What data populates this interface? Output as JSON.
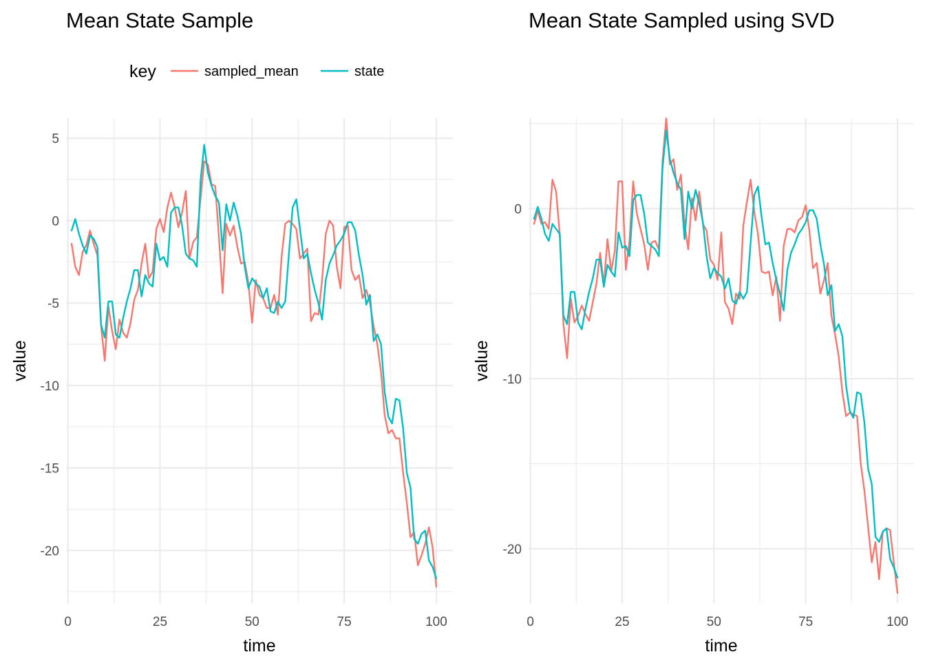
{
  "legend": {
    "title": "key",
    "items": [
      {
        "label": "sampled_mean",
        "color": "#F8766D"
      },
      {
        "label": "state",
        "color": "#00BFC4"
      }
    ]
  },
  "chart_data": [
    {
      "type": "line",
      "title": "Mean State Sample",
      "xlabel": "time",
      "ylabel": "value",
      "xlim": [
        -0.5,
        104.5
      ],
      "ylim": [
        -23.2,
        6.2
      ],
      "x_ticks": [
        0,
        25,
        50,
        75,
        100
      ],
      "x_tick_labels": [
        "0",
        "25",
        "50",
        "75",
        "100"
      ],
      "y_ticks": [
        5,
        0,
        -5,
        -10,
        -15,
        -20
      ],
      "y_tick_labels": [
        "5",
        "0",
        "-5",
        "-10",
        "-15",
        "-20"
      ],
      "grid": true,
      "legend_position": "top",
      "series": [
        {
          "name": "sampled_mean",
          "color": "#F8766D",
          "x": [
            1,
            2,
            3,
            4,
            5,
            6,
            7,
            8,
            9,
            10,
            11,
            12,
            13,
            14,
            15,
            16,
            17,
            18,
            19,
            20,
            21,
            22,
            23,
            24,
            25,
            26,
            27,
            28,
            29,
            30,
            31,
            32,
            33,
            34,
            35,
            36,
            37,
            38,
            39,
            40,
            41,
            42,
            43,
            44,
            45,
            46,
            47,
            48,
            49,
            50,
            51,
            52,
            53,
            54,
            55,
            56,
            57,
            58,
            59,
            60,
            61,
            62,
            63,
            64,
            65,
            66,
            67,
            68,
            69,
            70,
            71,
            72,
            73,
            74,
            75,
            76,
            77,
            78,
            79,
            80,
            81,
            82,
            83,
            84,
            85,
            86,
            87,
            88,
            89,
            90,
            91,
            92,
            93,
            94,
            95,
            96,
            97,
            98,
            99,
            100
          ],
          "values": [
            -1.4,
            -2.8,
            -3.3,
            -1.9,
            -1.5,
            -0.6,
            -1.4,
            -2.1,
            -6.4,
            -8.5,
            -5.2,
            -6.7,
            -7.8,
            -6.0,
            -6.8,
            -7.1,
            -6.2,
            -4.8,
            -4.2,
            -2.6,
            -1.4,
            -3.5,
            -3.1,
            -0.5,
            0.1,
            -0.7,
            0.8,
            1.7,
            0.8,
            -0.4,
            0.5,
            1.8,
            -2.3,
            -1.3,
            -1.0,
            1.3,
            3.6,
            3.4,
            2.2,
            2.1,
            -1.0,
            -4.4,
            -0.2,
            -0.9,
            -0.3,
            -1.6,
            -2.6,
            -2.5,
            -3.8,
            -6.2,
            -3.6,
            -4.5,
            -4.7,
            -5.3,
            -5.3,
            -4.5,
            -5.7,
            -2.2,
            -0.2,
            0.0,
            -0.2,
            -0.5,
            -2.3,
            -2.0,
            -1.7,
            -6.1,
            -5.6,
            -5.7,
            -3.6,
            -0.8,
            0.0,
            -0.3,
            -2.8,
            -4.1,
            -0.4,
            -0.3,
            -3.0,
            -3.6,
            -3.3,
            -4.7,
            -4.2,
            -5.0,
            -6.4,
            -7.5,
            -9.2,
            -11.8,
            -12.9,
            -12.7,
            -13.2,
            -13.2,
            -15.3,
            -17.1,
            -19.2,
            -18.9,
            -20.9,
            -20.3,
            -19.6,
            -18.6,
            -19.8,
            -22.2
          ]
        },
        {
          "name": "state",
          "color": "#00BFC4",
          "x": [
            1,
            2,
            3,
            4,
            5,
            6,
            7,
            8,
            9,
            10,
            11,
            12,
            13,
            14,
            15,
            16,
            17,
            18,
            19,
            20,
            21,
            22,
            23,
            24,
            25,
            26,
            27,
            28,
            29,
            30,
            31,
            32,
            33,
            34,
            35,
            36,
            37,
            38,
            39,
            40,
            41,
            42,
            43,
            44,
            45,
            46,
            47,
            48,
            49,
            50,
            51,
            52,
            53,
            54,
            55,
            56,
            57,
            58,
            59,
            60,
            61,
            62,
            63,
            64,
            65,
            66,
            67,
            68,
            69,
            70,
            71,
            72,
            73,
            74,
            75,
            76,
            77,
            78,
            79,
            80,
            81,
            82,
            83,
            84,
            85,
            86,
            87,
            88,
            89,
            90,
            91,
            92,
            93,
            94,
            95,
            96,
            97,
            98,
            99,
            100
          ],
          "values": [
            -0.6,
            0.1,
            -0.8,
            -1.5,
            -2.0,
            -0.9,
            -1.1,
            -1.6,
            -6.3,
            -7.1,
            -4.9,
            -4.9,
            -6.9,
            -7.1,
            -5.9,
            -4.9,
            -4.1,
            -3.0,
            -3.0,
            -4.6,
            -3.3,
            -3.8,
            -4.0,
            -1.4,
            -2.4,
            -2.2,
            -2.8,
            0.5,
            0.8,
            0.8,
            -0.3,
            -2.0,
            -2.3,
            -2.4,
            -2.8,
            2.4,
            4.6,
            2.9,
            2.1,
            1.5,
            1.1,
            -1.8,
            1.0,
            0.0,
            1.1,
            0.3,
            -0.8,
            -2.8,
            -4.1,
            -3.5,
            -3.8,
            -4.0,
            -4.7,
            -4.1,
            -5.5,
            -5.6,
            -4.9,
            -5.3,
            -4.9,
            -2.0,
            0.8,
            1.3,
            -0.5,
            -2.3,
            -2.0,
            -3.2,
            -4.2,
            -5.0,
            -6.0,
            -3.6,
            -2.6,
            -2.1,
            -1.5,
            -1.2,
            -0.8,
            -0.1,
            -0.1,
            -0.6,
            -2.1,
            -3.3,
            -5.1,
            -4.5,
            -7.3,
            -6.9,
            -7.5,
            -10.4,
            -11.9,
            -12.3,
            -10.8,
            -10.9,
            -12.6,
            -15.3,
            -16.2,
            -19.3,
            -19.6,
            -19.0,
            -18.8,
            -20.6,
            -21.0,
            -21.7
          ]
        }
      ]
    },
    {
      "type": "line",
      "title": "Mean State Sampled using SVD",
      "xlabel": "time",
      "ylabel": "value",
      "xlim": [
        -0.5,
        104.5
      ],
      "ylim": [
        -23.2,
        5.3
      ],
      "x_ticks": [
        0,
        25,
        50,
        75,
        100
      ],
      "x_tick_labels": [
        "0",
        "25",
        "50",
        "75",
        "100"
      ],
      "y_ticks": [
        0,
        -10,
        -20
      ],
      "y_tick_labels": [
        "0",
        "-10",
        "-20"
      ],
      "grid": true,
      "series": [
        {
          "name": "sampled_mean",
          "color": "#F8766D",
          "x": [
            1,
            2,
            3,
            4,
            5,
            6,
            7,
            8,
            9,
            10,
            11,
            12,
            13,
            14,
            15,
            16,
            17,
            18,
            19,
            20,
            21,
            22,
            23,
            24,
            25,
            26,
            27,
            28,
            29,
            30,
            31,
            32,
            33,
            34,
            35,
            36,
            37,
            38,
            39,
            40,
            41,
            42,
            43,
            44,
            45,
            46,
            47,
            48,
            49,
            50,
            51,
            52,
            53,
            54,
            55,
            56,
            57,
            58,
            59,
            60,
            61,
            62,
            63,
            64,
            65,
            66,
            67,
            68,
            69,
            70,
            71,
            72,
            73,
            74,
            75,
            76,
            77,
            78,
            79,
            80,
            81,
            82,
            83,
            84,
            85,
            86,
            87,
            88,
            89,
            90,
            91,
            92,
            93,
            94,
            95,
            96,
            97,
            98,
            99,
            100
          ],
          "values": [
            -0.9,
            -0.1,
            -0.9,
            -0.8,
            -1.2,
            1.7,
            1.0,
            -1.5,
            -6.8,
            -8.8,
            -5.3,
            -6.7,
            -6.3,
            -5.7,
            -6.2,
            -6.6,
            -5.5,
            -4.4,
            -2.6,
            -4.5,
            -1.8,
            -3.7,
            -2.5,
            1.6,
            1.6,
            -3.6,
            -1.9,
            1.6,
            -0.3,
            -1.2,
            -2.1,
            -3.6,
            -2.0,
            -1.9,
            -2.4,
            2.8,
            5.3,
            2.6,
            2.9,
            1.1,
            2.0,
            -0.9,
            -2.4,
            0.6,
            -0.7,
            1.0,
            -0.9,
            -1.3,
            -3.0,
            -3.3,
            -4.2,
            -1.4,
            -5.5,
            -5.9,
            -6.8,
            -5.0,
            -5.3,
            -1.0,
            0.4,
            1.7,
            -0.2,
            -1.5,
            -3.7,
            -3.8,
            -3.7,
            -5.1,
            -4.0,
            -6.6,
            -2.2,
            -1.2,
            -1.2,
            -1.4,
            -0.7,
            -0.5,
            0.2,
            -1.3,
            -3.5,
            -3.2,
            -5.0,
            -4.2,
            -3.2,
            -6.3,
            -7.4,
            -8.7,
            -10.8,
            -12.2,
            -12.0,
            -12.1,
            -12.2,
            -15.0,
            -16.6,
            -18.7,
            -20.8,
            -19.6,
            -21.8,
            -19.0,
            -18.8,
            -18.9,
            -20.8,
            -22.6
          ]
        },
        {
          "name": "state",
          "color": "#00BFC4",
          "x": [
            1,
            2,
            3,
            4,
            5,
            6,
            7,
            8,
            9,
            10,
            11,
            12,
            13,
            14,
            15,
            16,
            17,
            18,
            19,
            20,
            21,
            22,
            23,
            24,
            25,
            26,
            27,
            28,
            29,
            30,
            31,
            32,
            33,
            34,
            35,
            36,
            37,
            38,
            39,
            40,
            41,
            42,
            43,
            44,
            45,
            46,
            47,
            48,
            49,
            50,
            51,
            52,
            53,
            54,
            55,
            56,
            57,
            58,
            59,
            60,
            61,
            62,
            63,
            64,
            65,
            66,
            67,
            68,
            69,
            70,
            71,
            72,
            73,
            74,
            75,
            76,
            77,
            78,
            79,
            80,
            81,
            82,
            83,
            84,
            85,
            86,
            87,
            88,
            89,
            90,
            91,
            92,
            93,
            94,
            95,
            96,
            97,
            98,
            99,
            100
          ],
          "values": [
            -0.6,
            0.1,
            -0.6,
            -1.5,
            -1.9,
            -0.9,
            -1.2,
            -1.5,
            -6.3,
            -6.8,
            -4.9,
            -4.9,
            -6.7,
            -7.1,
            -5.9,
            -4.9,
            -4.1,
            -3.0,
            -3.0,
            -4.6,
            -3.3,
            -3.7,
            -4.0,
            -1.4,
            -2.3,
            -2.2,
            -2.8,
            0.5,
            0.8,
            0.8,
            -0.3,
            -2.0,
            -2.2,
            -2.4,
            -2.8,
            2.4,
            4.6,
            2.9,
            2.1,
            1.5,
            1.1,
            -1.8,
            1.0,
            0.0,
            1.1,
            0.3,
            -0.8,
            -2.8,
            -4.1,
            -3.5,
            -3.8,
            -4.0,
            -4.7,
            -4.1,
            -5.4,
            -5.6,
            -4.9,
            -5.3,
            -4.9,
            -2.0,
            0.8,
            1.3,
            -0.5,
            -2.1,
            -2.0,
            -3.2,
            -4.2,
            -5.0,
            -6.0,
            -3.6,
            -2.6,
            -2.1,
            -1.5,
            -1.2,
            -0.8,
            -0.1,
            -0.1,
            -0.6,
            -2.1,
            -3.3,
            -5.1,
            -4.5,
            -7.2,
            -6.8,
            -7.5,
            -10.4,
            -11.9,
            -12.3,
            -10.8,
            -10.9,
            -12.6,
            -15.3,
            -16.2,
            -19.3,
            -19.6,
            -19.0,
            -18.8,
            -20.6,
            -21.1,
            -21.7
          ]
        }
      ]
    }
  ]
}
